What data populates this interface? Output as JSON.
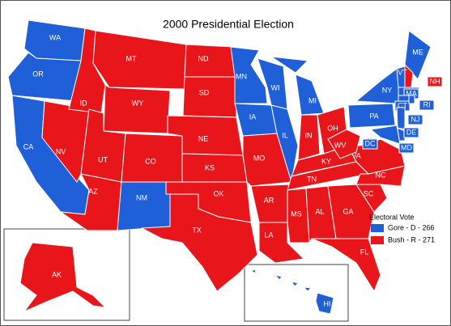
{
  "title": "2000 Presidential Election",
  "legend": {
    "title": "Electoral Vote",
    "items": [
      {
        "label": "Gore - D - 266",
        "color": "#1f5fd8"
      },
      {
        "label": "Bush - R - 271",
        "color": "#e8151b"
      }
    ]
  },
  "states": [
    {
      "label": "WA",
      "party": 0
    },
    {
      "label": "OR",
      "party": 0
    },
    {
      "label": "CA",
      "party": 0
    },
    {
      "label": "NV",
      "party": 1
    },
    {
      "label": "ID",
      "party": 1
    },
    {
      "label": "MT",
      "party": 1
    },
    {
      "label": "WY",
      "party": 1
    },
    {
      "label": "UT",
      "party": 1
    },
    {
      "label": "AZ",
      "party": 1
    },
    {
      "label": "CO",
      "party": 1
    },
    {
      "label": "NM",
      "party": 0
    },
    {
      "label": "ND",
      "party": 1
    },
    {
      "label": "SD",
      "party": 1
    },
    {
      "label": "NE",
      "party": 1
    },
    {
      "label": "KS",
      "party": 1
    },
    {
      "label": "OK",
      "party": 1
    },
    {
      "label": "TX",
      "party": 1
    },
    {
      "label": "MN",
      "party": 0
    },
    {
      "label": "IA",
      "party": 0
    },
    {
      "label": "MO",
      "party": 1
    },
    {
      "label": "AR",
      "party": 1
    },
    {
      "label": "LA",
      "party": 1
    },
    {
      "label": "WI",
      "party": 0
    },
    {
      "label": "IL",
      "party": 0
    },
    {
      "label": "MI",
      "party": 0
    },
    {
      "label": "IN",
      "party": 1
    },
    {
      "label": "OH",
      "party": 1
    },
    {
      "label": "KY",
      "party": 1
    },
    {
      "label": "TN",
      "party": 1
    },
    {
      "label": "MS",
      "party": 1
    },
    {
      "label": "AL",
      "party": 1
    },
    {
      "label": "GA",
      "party": 1
    },
    {
      "label": "FL",
      "party": 1
    },
    {
      "label": "SC",
      "party": 1
    },
    {
      "label": "NC",
      "party": 1
    },
    {
      "label": "VA",
      "party": 1
    },
    {
      "label": "WV",
      "party": 1
    },
    {
      "label": "PA",
      "party": 0
    },
    {
      "label": "NY",
      "party": 0
    },
    {
      "label": "ME",
      "party": 0
    },
    {
      "label": "NH",
      "party": 1
    },
    {
      "label": "VT",
      "party": 0
    },
    {
      "label": "MA",
      "party": 0
    },
    {
      "label": "CT",
      "party": 0
    },
    {
      "label": "RI",
      "party": 0
    },
    {
      "label": "NJ",
      "party": 0
    },
    {
      "label": "DE",
      "party": 0
    },
    {
      "label": "MD",
      "party": 0
    },
    {
      "label": "DC",
      "party": 0
    },
    {
      "label": "AK",
      "party": 1
    },
    {
      "label": "HI",
      "party": 0
    }
  ]
}
